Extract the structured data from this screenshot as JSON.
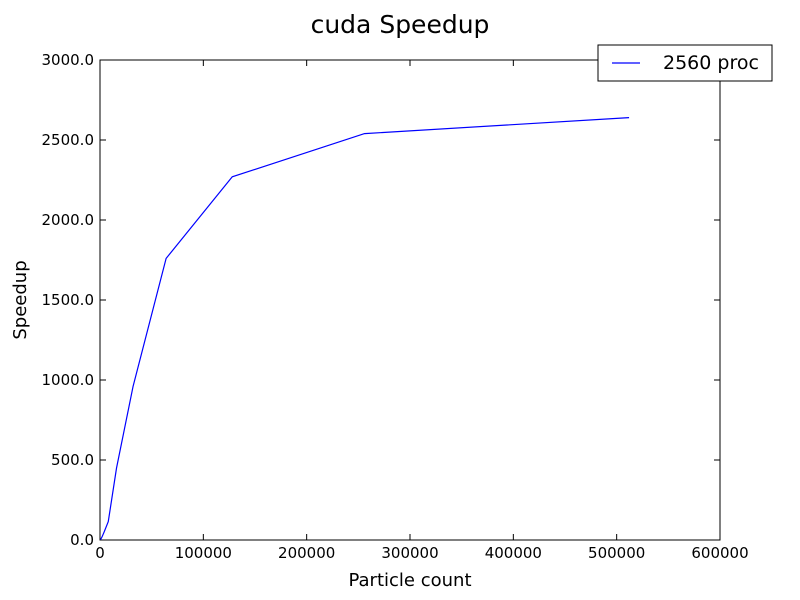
{
  "chart_data": {
    "type": "line",
    "title": "cuda Speedup",
    "xlabel": "Particle count",
    "ylabel": "Speedup",
    "xlim": [
      0,
      600000
    ],
    "ylim": [
      0,
      3000
    ],
    "x_ticks": [
      "0",
      "100000",
      "200000",
      "300000",
      "400000",
      "500000",
      "600000"
    ],
    "y_ticks": [
      "0.0",
      "500.0",
      "1000.0",
      "1500.0",
      "2000.0",
      "2500.0",
      "3000.0"
    ],
    "grid": false,
    "legend_position": "top-right",
    "series": [
      {
        "name": "2560 proc",
        "color": "#0000ff",
        "x": [
          500,
          1000,
          2000,
          4000,
          8000,
          16000,
          32000,
          64000,
          128000,
          256000,
          512000
        ],
        "y": [
          2,
          8,
          20,
          50,
          115,
          450,
          960,
          1760,
          2270,
          2540,
          2640
        ]
      }
    ]
  }
}
